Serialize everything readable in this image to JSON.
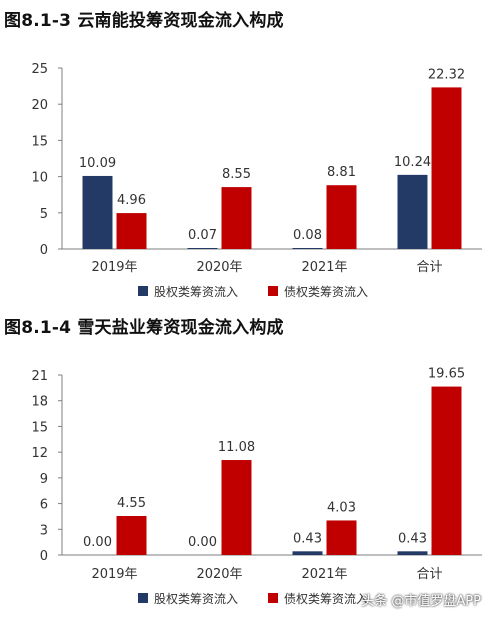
{
  "charts": [
    {
      "title": "图8.1-3 云南能投筹资现金流入构成"
    },
    {
      "title": "图8.1-4 雪天盐业筹资现金流入构成"
    }
  ],
  "watermark": "头条 @市值罗盘APP",
  "colors": {
    "equity": "#243a66",
    "debt": "#c00000",
    "axis": "#7f7f7f"
  },
  "chart_data": [
    {
      "type": "bar",
      "title": "图8.1-3 云南能投筹资现金流入构成",
      "categories": [
        "2019年",
        "2020年",
        "2021年",
        "合计"
      ],
      "series": [
        {
          "name": "股权类筹资流入",
          "values": [
            10.09,
            0.07,
            0.08,
            10.24
          ],
          "labels": [
            "10.09",
            "0.07",
            "0.08",
            "10.24"
          ]
        },
        {
          "name": "债权类筹资流入",
          "values": [
            4.96,
            8.55,
            8.81,
            22.32
          ],
          "labels": [
            "4.96",
            "8.55",
            "8.81",
            "22.32"
          ]
        }
      ],
      "ylim": [
        0,
        25
      ],
      "yticks": [
        0,
        5,
        10,
        15,
        20,
        25
      ],
      "grid": false,
      "legend": "bottom"
    },
    {
      "type": "bar",
      "title": "图8.1-4 雪天盐业筹资现金流入构成",
      "categories": [
        "2019年",
        "2020年",
        "2021年",
        "合计"
      ],
      "series": [
        {
          "name": "股权类筹资流入",
          "values": [
            0.0,
            0.0,
            0.43,
            0.43
          ],
          "labels": [
            "0.00",
            "0.00",
            "0.43",
            "0.43"
          ]
        },
        {
          "name": "债权类筹资流入",
          "values": [
            4.55,
            11.08,
            4.03,
            19.65
          ],
          "labels": [
            "4.55",
            "11.08",
            "4.03",
            "19.65"
          ]
        }
      ],
      "ylim": [
        0,
        21
      ],
      "yticks": [
        0,
        3,
        6,
        9,
        12,
        15,
        18,
        21
      ],
      "grid": false,
      "legend": "bottom"
    }
  ]
}
